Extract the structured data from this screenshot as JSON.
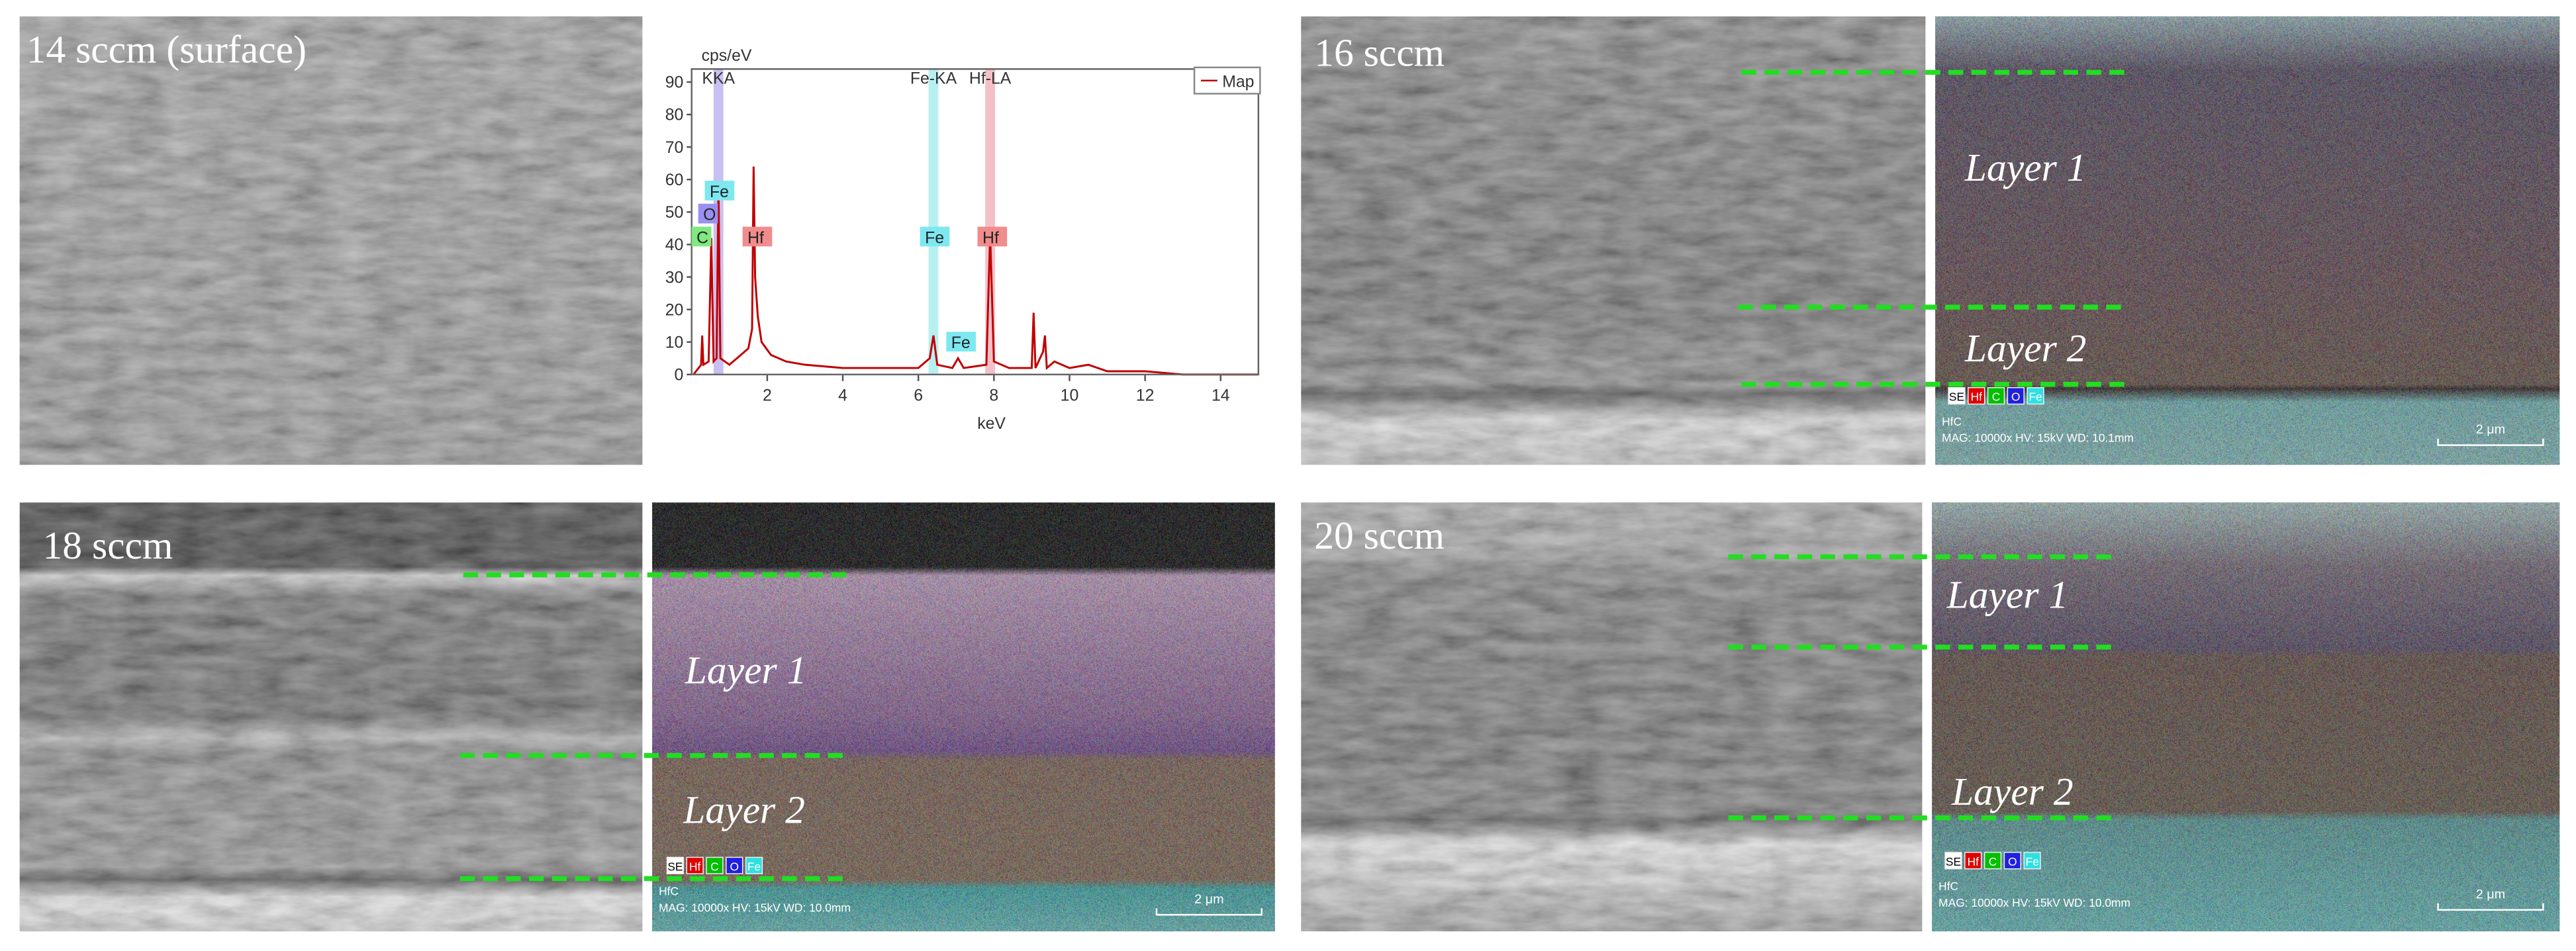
{
  "panels": [
    {
      "label": "14 sccm (surface)"
    },
    {
      "label": "16 sccm",
      "layers": [
        "Layer 1",
        "Layer 2"
      ],
      "legend": [
        "SE",
        "Hf",
        "C",
        "O",
        "Fe"
      ],
      "sample": "HfC",
      "info": "MAG: 10000x  HV: 15kV  WD: 10.1mm",
      "scale": "2 μm"
    },
    {
      "label": "18 sccm",
      "layers": [
        "Layer 1",
        "Layer 2"
      ],
      "legend": [
        "SE",
        "Hf",
        "C",
        "O",
        "Fe"
      ],
      "sample": "HfC",
      "info": "MAG: 10000x  HV: 15kV  WD: 10.0mm",
      "scale": "2 μm"
    },
    {
      "label": "20 sccm",
      "layers": [
        "Layer 1",
        "Layer 2"
      ],
      "legend": [
        "SE",
        "Hf",
        "C",
        "O",
        "Fe"
      ],
      "sample": "HfC",
      "info": "MAG: 10000x  HV: 15kV  WD: 10.0mm",
      "scale": "2 μm"
    }
  ],
  "chart_data": {
    "type": "line",
    "y_label": "cps/eV",
    "x_label": "keV",
    "xlim": [
      0,
      15
    ],
    "ylim": [
      0,
      94
    ],
    "xticks": [
      2,
      4,
      6,
      8,
      10,
      12,
      14
    ],
    "yticks": [
      0,
      10,
      20,
      30,
      40,
      50,
      60,
      70,
      80,
      90
    ],
    "line_labels": [
      "KKA",
      "Fe-KA",
      "Hf-LA"
    ],
    "peak_tags": [
      "Fe",
      "O",
      "C",
      "Hf",
      "Fe",
      "Fe",
      "Hf"
    ],
    "series": [
      {
        "name": "Map",
        "color": "#c00000",
        "x": [
          0.05,
          0.25,
          0.28,
          0.31,
          0.45,
          0.52,
          0.58,
          0.66,
          0.71,
          0.76,
          1.0,
          1.5,
          1.6,
          1.64,
          1.68,
          1.75,
          1.85,
          2.1,
          2.5,
          3.0,
          4.0,
          5.0,
          6.0,
          6.3,
          6.4,
          6.5,
          6.9,
          7.05,
          7.2,
          7.8,
          7.9,
          8.0,
          8.4,
          9.0,
          9.05,
          9.1,
          9.3,
          9.35,
          9.4,
          9.6,
          10.0,
          10.5,
          11.0,
          12.0,
          13.0,
          15.0
        ],
        "values": [
          0,
          3,
          12,
          3,
          4,
          42,
          4,
          5,
          58,
          5,
          3,
          8,
          14,
          64,
          30,
          18,
          10,
          6,
          4,
          3,
          2,
          2,
          2,
          5,
          12,
          3,
          2,
          5,
          2,
          3,
          43,
          4,
          2,
          2,
          19,
          2,
          7,
          12,
          2,
          4,
          2,
          3,
          1,
          1,
          0,
          0
        ]
      }
    ]
  }
}
